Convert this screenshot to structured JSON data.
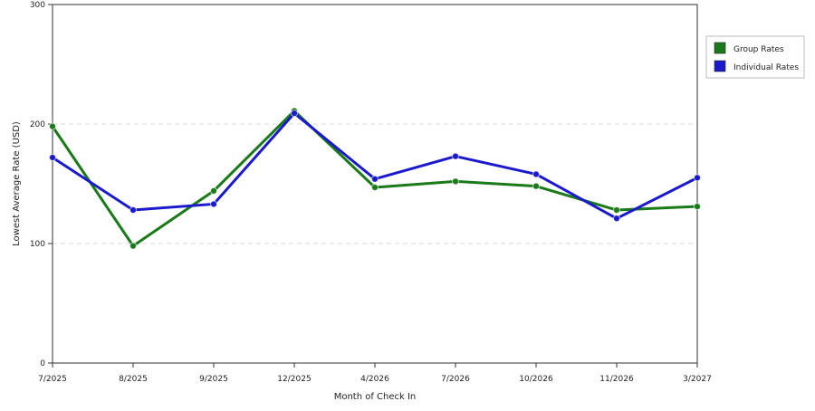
{
  "chart_data": {
    "type": "line",
    "categories": [
      "7/2025",
      "8/2025",
      "9/2025",
      "12/2025",
      "4/2026",
      "7/2026",
      "10/2026",
      "11/2026",
      "3/2027"
    ],
    "series": [
      {
        "name": "Group Rates",
        "color": "#1a7a1a",
        "values": [
          198,
          98,
          144,
          211,
          147,
          152,
          148,
          128,
          131
        ]
      },
      {
        "name": "Individual Rates",
        "color": "#1a1acc",
        "values": [
          172,
          128,
          133,
          209,
          154,
          173,
          158,
          121,
          155
        ]
      }
    ],
    "xlabel": "Month of Check In",
    "ylabel": "Lowest Average Rate (USD)",
    "ylim": [
      0,
      300
    ],
    "yticks": [
      0,
      100,
      200,
      300
    ],
    "grid": true,
    "legend_position": "top-right"
  }
}
